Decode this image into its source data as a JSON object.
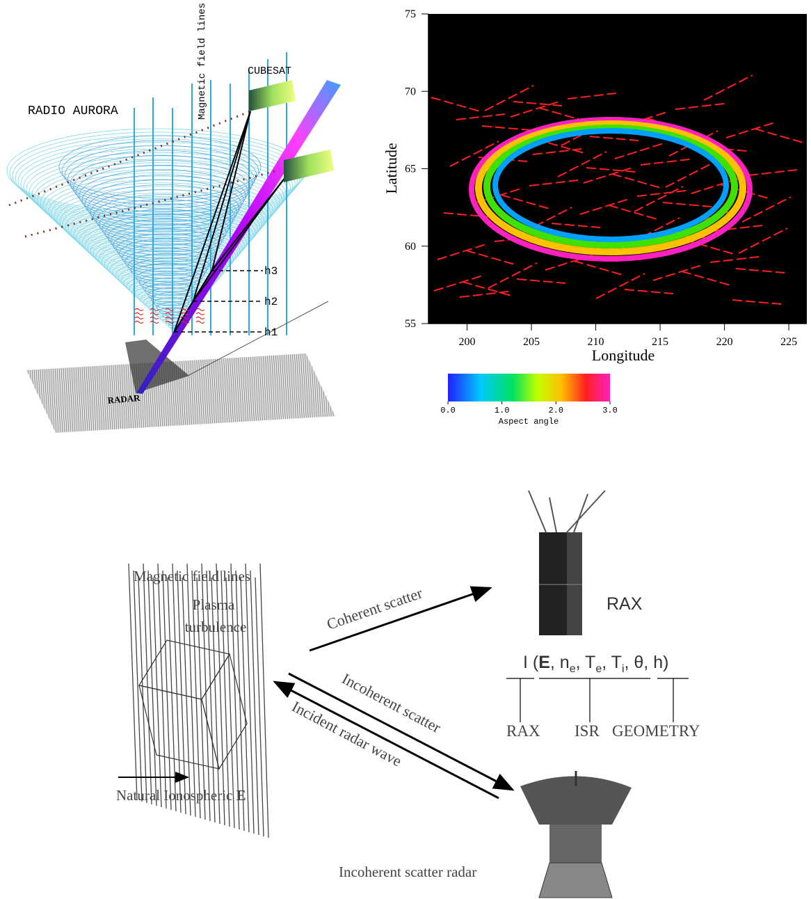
{
  "aurora_diagram": {
    "title": "RADIO AURORA",
    "field_lines": "Magnetic field lines",
    "cubesat": "CUBESAT",
    "radar": "RADAR",
    "heights": [
      "h1",
      "h2",
      "h3"
    ]
  },
  "chart_data": {
    "type": "map",
    "xlabel": "Longitude",
    "ylabel": "Latitude",
    "xlim": [
      197,
      226.4
    ],
    "ylim": [
      55,
      75
    ],
    "xticks": [
      200,
      205,
      210,
      215,
      220,
      225
    ],
    "yticks": [
      55,
      60,
      65,
      70,
      75
    ],
    "colorbar": {
      "label": "Aspect angle",
      "lim": [
        0,
        3
      ],
      "ticks": [
        {
          "value": 0,
          "label": "0.0"
        },
        {
          "value": 1,
          "label": "1.0"
        },
        {
          "value": 2,
          "label": "2.0"
        },
        {
          "value": 3,
          "label": "3.0"
        }
      ]
    }
  },
  "rax_diagram": {
    "field_lines": "Magnetic field lines",
    "plasma": [
      "Plasma",
      "turbulence"
    ],
    "electric_field": [
      "Natural Ionospheric",
      "E"
    ],
    "coherent": "Coherent scatter",
    "incoherent": "Incoherent scatter",
    "incident": "Incident radar wave",
    "rax": "RAX",
    "formula": [
      "I (",
      "E",
      ", n",
      "e",
      ", T",
      "e",
      ", T",
      "i",
      ", θ, h)"
    ],
    "brackets": [
      "RAX",
      "ISR",
      "GEOMETRY"
    ],
    "radar": "Incoherent scatter radar"
  }
}
